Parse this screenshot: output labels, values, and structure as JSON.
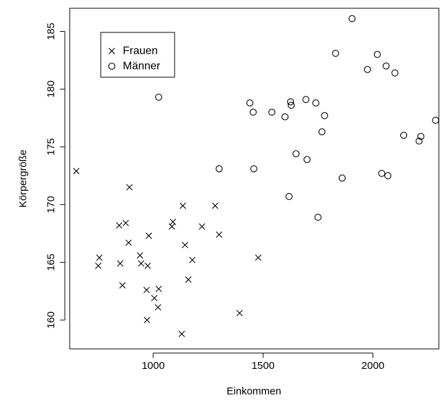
{
  "chart_data": {
    "type": "scatter",
    "xlabel": "Einkommen",
    "ylabel": "Körpergröße",
    "xlim": [
      620,
      2300
    ],
    "ylim": [
      157.5,
      187
    ],
    "x_ticks": [
      1000,
      1500,
      2000
    ],
    "y_ticks": [
      160,
      165,
      170,
      175,
      180,
      185
    ],
    "grid": false,
    "legend_position": "top-left",
    "series": [
      {
        "name": "Frauen",
        "marker": "cross",
        "points": [
          [
            650,
            172.9
          ],
          [
            750,
            164.7
          ],
          [
            755,
            165.4
          ],
          [
            845,
            168.2
          ],
          [
            850,
            164.9
          ],
          [
            860,
            163.0
          ],
          [
            875,
            168.4
          ],
          [
            888,
            166.7
          ],
          [
            892,
            171.5
          ],
          [
            940,
            165.6
          ],
          [
            945,
            164.9
          ],
          [
            970,
            162.6
          ],
          [
            975,
            164.7
          ],
          [
            972,
            160.0
          ],
          [
            980,
            167.3
          ],
          [
            1005,
            161.9
          ],
          [
            1022,
            161.1
          ],
          [
            1025,
            162.7
          ],
          [
            1085,
            168.1
          ],
          [
            1090,
            168.5
          ],
          [
            1130,
            158.8
          ],
          [
            1135,
            169.9
          ],
          [
            1145,
            166.5
          ],
          [
            1160,
            163.5
          ],
          [
            1178,
            165.2
          ],
          [
            1222,
            168.1
          ],
          [
            1282,
            169.9
          ],
          [
            1300,
            167.4
          ],
          [
            1393,
            160.6
          ],
          [
            1478,
            165.4
          ]
        ]
      },
      {
        "name": "Männer",
        "marker": "circle",
        "points": [
          [
            1025,
            179.3
          ],
          [
            1300,
            173.1
          ],
          [
            1440,
            178.8
          ],
          [
            1455,
            178.0
          ],
          [
            1458,
            173.1
          ],
          [
            1540,
            178.0
          ],
          [
            1600,
            177.6
          ],
          [
            1618,
            170.7
          ],
          [
            1625,
            178.9
          ],
          [
            1628,
            178.6
          ],
          [
            1650,
            174.4
          ],
          [
            1695,
            179.1
          ],
          [
            1700,
            173.9
          ],
          [
            1740,
            178.8
          ],
          [
            1750,
            168.9
          ],
          [
            1768,
            176.3
          ],
          [
            1780,
            177.7
          ],
          [
            1830,
            183.1
          ],
          [
            1860,
            172.3
          ],
          [
            1905,
            186.1
          ],
          [
            1975,
            181.7
          ],
          [
            2020,
            183.0
          ],
          [
            2040,
            172.7
          ],
          [
            2060,
            182.0
          ],
          [
            2068,
            172.5
          ],
          [
            2100,
            181.4
          ],
          [
            2140,
            176.0
          ],
          [
            2210,
            175.5
          ],
          [
            2218,
            175.9
          ],
          [
            2285,
            177.3
          ]
        ]
      }
    ]
  }
}
